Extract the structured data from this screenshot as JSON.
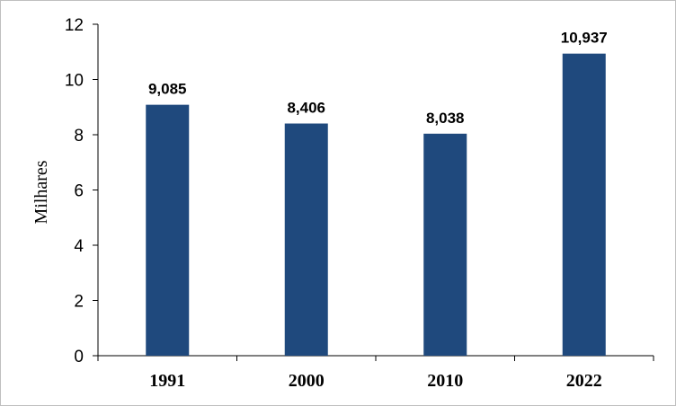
{
  "chart_data": {
    "type": "bar",
    "categories": [
      "1991",
      "2000",
      "2010",
      "2022"
    ],
    "values": [
      9.085,
      8.406,
      8.038,
      10.937
    ],
    "data_labels": [
      "9,085",
      "8,406",
      "8,038",
      "10,937"
    ],
    "title": "",
    "xlabel": "",
    "ylabel": "Milhares",
    "ylim": [
      0,
      12
    ],
    "yticks": [
      "0",
      "2",
      "4",
      "6",
      "8",
      "10",
      "12"
    ],
    "grid": false,
    "legend": "none",
    "bar_color": "#1f497d"
  }
}
